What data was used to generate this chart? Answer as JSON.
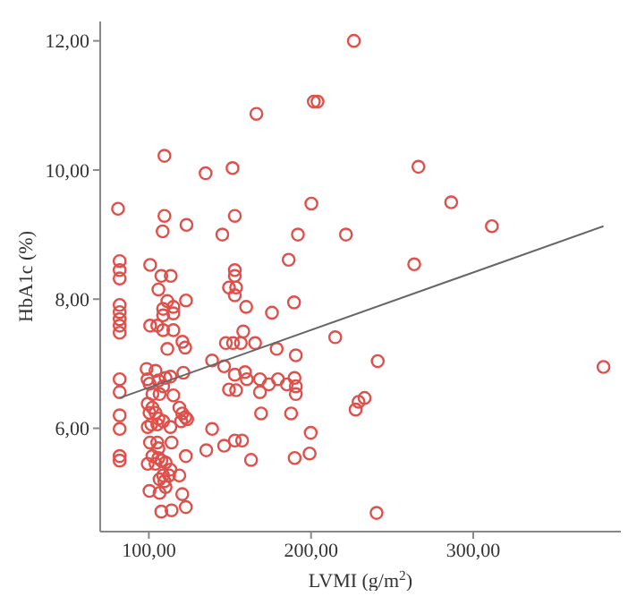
{
  "chart_data": {
    "type": "scatter",
    "xlabel": "LVMI (g/m$^{2}$)",
    "ylabel": "HbA1c (%)",
    "xlim": [
      70,
      391
    ],
    "ylim": [
      4.4,
      12.3
    ],
    "xticks": [
      {
        "value": 100,
        "label": "100,00"
      },
      {
        "value": 200,
        "label": "200,00"
      },
      {
        "value": 300,
        "label": "300,00"
      }
    ],
    "yticks": [
      {
        "value": 6,
        "label": "6,00"
      },
      {
        "value": 8,
        "label": "8,00"
      },
      {
        "value": 10,
        "label": "10,00"
      },
      {
        "value": 12,
        "label": "12,00"
      }
    ],
    "grid": false,
    "legend": false,
    "series": [
      {
        "color": "#e0504a",
        "marker": "circle",
        "x": [
          226.4,
          201.7,
          204,
          166.3,
          109.6,
          135,
          151.6,
          81,
          200.2,
          109.6,
          123.2,
          153,
          108.5,
          145.3,
          191.9,
          221.5,
          82,
          82,
          82,
          100.8,
          107.7,
          113.5,
          153,
          153,
          186.2,
          105.9,
          111.4,
          108.8,
          115.1,
          108.8,
          115.1,
          122.9,
          149.4,
          153.8,
          153,
          160,
          175.9,
          189.5,
          82,
          82,
          82,
          82,
          82,
          100.8,
          105.2,
          108.8,
          115.1,
          111.4,
          120.7,
          122.4,
          147.5,
          151.9,
          156.7,
          158.2,
          165.5,
          178.8,
          190.6,
          214.9,
          139,
          146.4,
          153,
          159.3,
          160.4,
          168.5,
          174,
          179.6,
          185.1,
          189.8,
          190.6,
          149.4,
          153.8,
          168.5,
          190.6,
          121.3,
          82,
          82,
          98.6,
          104.1,
          99.2,
          100.4,
          105.9,
          110.3,
          113.3,
          108.8,
          106.6,
          102.2,
          115.1,
          99.3,
          102.2,
          100.4,
          104.1,
          105.9,
          101.5,
          105.2,
          108.8,
          113.3,
          99.3,
          82,
          82,
          118.8,
          120.6,
          122.5,
          119.9,
          123.6,
          139,
          169.2,
          187.7,
          199.8,
          135.4,
          146.4,
          153,
          157.5,
          163,
          189.9,
          199.1,
          100.7,
          105.2,
          105.9,
          114,
          102.2,
          105.9,
          107.7,
          110.3,
          104.1,
          113.3,
          108.8,
          112.5,
          99.3,
          122.8,
          82,
          82,
          106.6,
          109.6,
          110.3,
          118.8,
          100.4,
          106.6,
          120.6,
          107.7,
          114,
          122.8,
          266.2,
          286.4,
          311.5,
          263.6,
          241.1,
          380.3,
          233,
          229.3,
          227.5,
          240.4
        ],
        "values": [
          12.0,
          11.06,
          11.06,
          10.87,
          10.22,
          9.95,
          10.03,
          9.4,
          9.48,
          9.29,
          9.15,
          9.29,
          9.05,
          9.0,
          9.0,
          9.0,
          8.59,
          8.45,
          8.32,
          8.53,
          8.36,
          8.36,
          8.45,
          8.36,
          8.61,
          8.15,
          7.97,
          7.85,
          7.88,
          7.75,
          7.78,
          7.98,
          8.18,
          8.18,
          8.06,
          7.88,
          7.79,
          7.95,
          7.91,
          7.8,
          7.69,
          7.59,
          7.48,
          7.59,
          7.59,
          7.52,
          7.52,
          7.23,
          7.34,
          7.25,
          7.32,
          7.32,
          7.32,
          7.5,
          7.32,
          7.23,
          7.13,
          7.41,
          7.05,
          6.96,
          6.83,
          6.87,
          6.76,
          6.76,
          6.68,
          6.76,
          6.68,
          6.78,
          6.65,
          6.6,
          6.59,
          6.56,
          6.53,
          6.86,
          6.76,
          6.56,
          6.92,
          6.89,
          6.76,
          6.69,
          6.74,
          6.78,
          6.8,
          6.65,
          6.53,
          6.53,
          6.51,
          6.38,
          6.32,
          6.24,
          6.24,
          6.15,
          6.06,
          6.06,
          6.11,
          6.02,
          6.02,
          6.2,
          5.99,
          6.32,
          6.23,
          6.17,
          6.11,
          6.14,
          5.99,
          6.23,
          6.23,
          5.93,
          5.66,
          5.73,
          5.81,
          5.81,
          5.51,
          5.54,
          5.61,
          5.78,
          5.78,
          5.69,
          5.78,
          5.57,
          5.54,
          5.5,
          5.47,
          5.45,
          5.36,
          5.27,
          5.27,
          5.45,
          5.57,
          5.57,
          5.5,
          5.21,
          5.18,
          5.09,
          5.27,
          5.03,
          5.0,
          4.98,
          4.71,
          4.73,
          4.78,
          10.05,
          9.5,
          9.13,
          8.54,
          7.04,
          6.95,
          6.47,
          6.41,
          6.29,
          4.69
        ]
      },
      {
        "type": "line",
        "color": "#666666",
        "marker": "none",
        "x": [
          82,
          380.3
        ],
        "values": [
          6.47,
          9.13
        ]
      }
    ]
  }
}
